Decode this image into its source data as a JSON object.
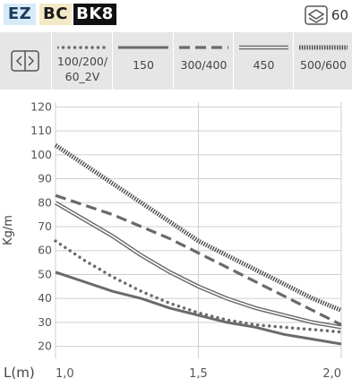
{
  "header": {
    "badges": [
      "EZ",
      "BC",
      "BK8"
    ],
    "badge_colors": {
      "EZ": "#d7eaf7",
      "BC": "#f3e9c6",
      "BK8": "#111111"
    },
    "count": "60",
    "count_icon": "stack-layers-icon"
  },
  "legend": {
    "toggle_icon": "expand-width-icon",
    "items": [
      {
        "label": "100/200/\n60_2V",
        "style": "dotted",
        "color": "#6a6a6a"
      },
      {
        "label": "150",
        "style": "solid-thick",
        "color": "#6a6a6a"
      },
      {
        "label": "300/400",
        "style": "dashed",
        "color": "#6a6a6a"
      },
      {
        "label": "450",
        "style": "double",
        "color": "#6a6a6a"
      },
      {
        "label": "500/600",
        "style": "hatched",
        "color": "#4a4a4a"
      }
    ]
  },
  "chart_data": {
    "type": "line",
    "ylabel": "Kg/m",
    "xlabel": "L(m)",
    "xlim": [
      1.0,
      2.0
    ],
    "ylim": [
      15,
      122
    ],
    "xticks": [
      1.0,
      1.5,
      2.0
    ],
    "xtick_labels": [
      "1,0",
      "1,5",
      "2,0"
    ],
    "yticks": [
      20,
      30,
      40,
      50,
      60,
      70,
      80,
      90,
      100,
      110,
      120
    ],
    "grid": true,
    "series": [
      {
        "name": "100/200/60_2V",
        "style": "dotted",
        "x": [
          1.0,
          1.1,
          1.2,
          1.3,
          1.4,
          1.5,
          1.6,
          1.7,
          1.8,
          1.9,
          2.0
        ],
        "y": [
          64,
          56,
          49,
          43,
          38,
          34,
          31,
          29,
          28,
          27,
          26
        ]
      },
      {
        "name": "150",
        "style": "solid-thick",
        "x": [
          1.0,
          1.1,
          1.2,
          1.3,
          1.4,
          1.5,
          1.6,
          1.7,
          1.8,
          1.9,
          2.0
        ],
        "y": [
          51,
          47,
          43,
          40,
          36,
          33,
          30,
          28,
          25,
          23,
          21
        ]
      },
      {
        "name": "300/400",
        "style": "dashed",
        "x": [
          1.0,
          1.1,
          1.2,
          1.3,
          1.4,
          1.5,
          1.6,
          1.7,
          1.8,
          1.9,
          2.0
        ],
        "y": [
          83,
          79,
          75,
          70,
          65,
          59,
          53,
          47,
          41,
          35,
          29
        ]
      },
      {
        "name": "450",
        "style": "double",
        "x": [
          1.0,
          1.1,
          1.2,
          1.3,
          1.4,
          1.5,
          1.6,
          1.7,
          1.8,
          1.9,
          2.0
        ],
        "y": [
          80,
          73,
          66,
          58,
          51,
          45,
          40,
          36,
          33,
          30,
          28
        ]
      },
      {
        "name": "500/600",
        "style": "hatched",
        "x": [
          1.0,
          1.1,
          1.2,
          1.3,
          1.4,
          1.5,
          1.6,
          1.7,
          1.8,
          1.9,
          2.0
        ],
        "y": [
          104,
          96,
          88,
          80,
          72,
          64,
          58,
          52,
          46,
          40,
          35
        ]
      }
    ]
  }
}
